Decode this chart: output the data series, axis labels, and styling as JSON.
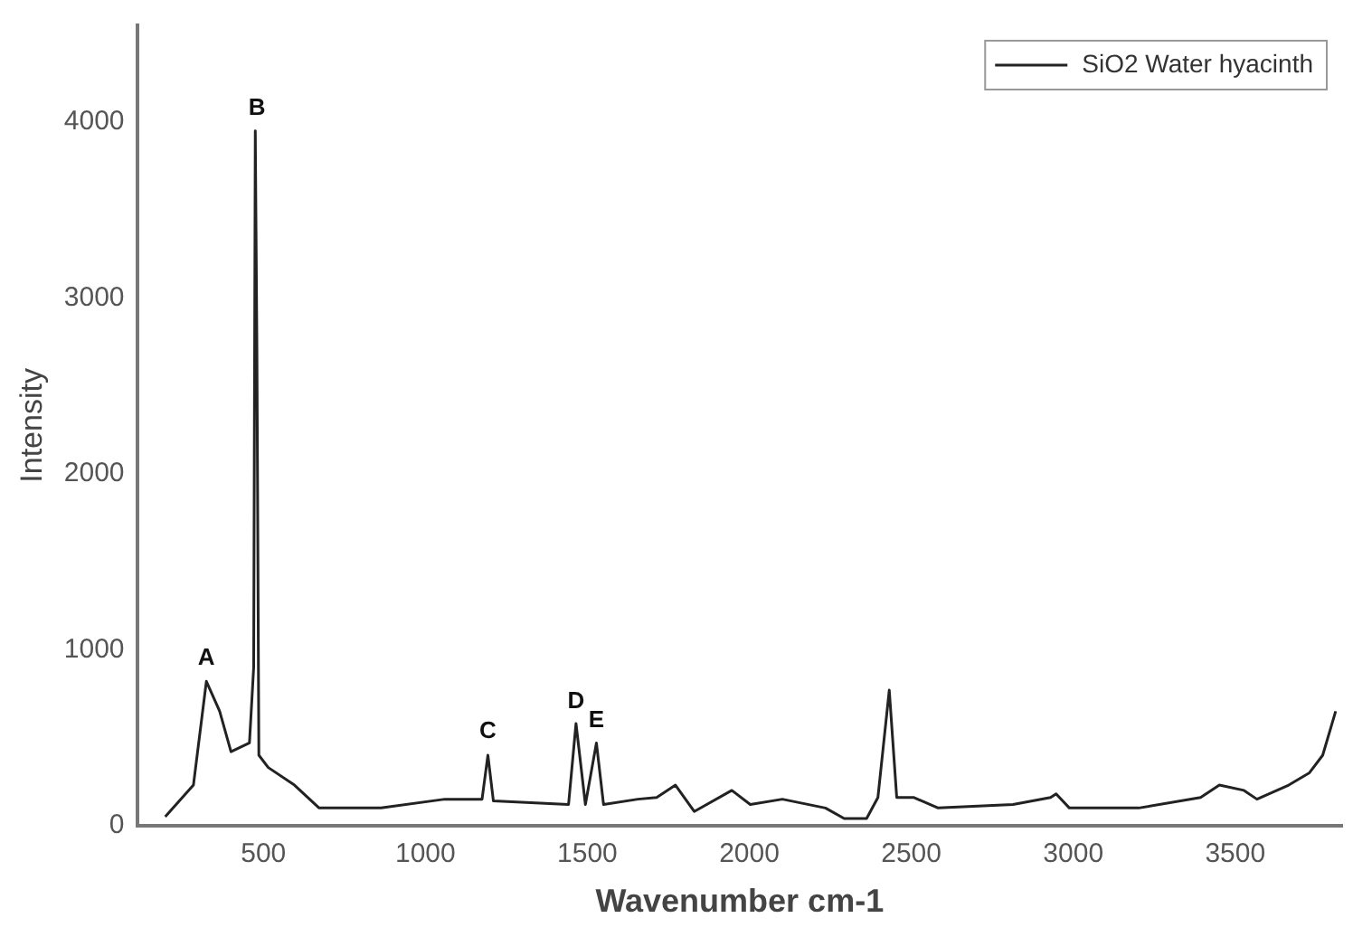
{
  "chart_data": {
    "type": "line",
    "xlabel": "Wavenumber cm-1",
    "ylabel": "Intensity",
    "xlim": [
      110,
      3830
    ],
    "ylim": [
      0,
      4550
    ],
    "xticks": [
      500,
      1000,
      1500,
      2000,
      2500,
      3000,
      3500
    ],
    "yticks": [
      0,
      1000,
      2000,
      3000,
      4000
    ],
    "grid": false,
    "legend": "top right",
    "marker": "none",
    "line_style": "solid",
    "series": [
      {
        "name": "SiO2 Water hyacinth",
        "color": "#222222",
        "x": [
          197,
          284,
          324,
          365,
          400,
          457,
          470,
          475,
          480,
          486,
          515,
          596,
          672,
          863,
          1060,
          1175,
          1193,
          1210,
          1442,
          1465,
          1494,
          1528,
          1550,
          1656,
          1714,
          1772,
          1830,
          1946,
          2003,
          2102,
          2235,
          2293,
          2362,
          2397,
          2432,
          2455,
          2507,
          2583,
          2814,
          2930,
          2947,
          2988,
          3202,
          3393,
          3451,
          3527,
          3567,
          3665,
          3729,
          3770,
          3810
        ],
        "values": [
          50,
          230,
          820,
          650,
          420,
          470,
          900,
          3950,
          2700,
          400,
          330,
          230,
          100,
          100,
          150,
          150,
          400,
          140,
          120,
          580,
          120,
          470,
          120,
          150,
          160,
          230,
          80,
          200,
          120,
          150,
          100,
          40,
          40,
          160,
          770,
          160,
          160,
          100,
          120,
          160,
          180,
          100,
          100,
          160,
          230,
          200,
          150,
          230,
          300,
          400,
          650
        ]
      }
    ],
    "annotations": [
      {
        "text": "A",
        "x": 324,
        "y": 820
      },
      {
        "text": "B",
        "x": 480,
        "y": 3950
      },
      {
        "text": "C",
        "x": 1193,
        "y": 405
      },
      {
        "text": "D",
        "x": 1465,
        "y": 575
      },
      {
        "text": "E",
        "x": 1528,
        "y": 470
      }
    ]
  }
}
